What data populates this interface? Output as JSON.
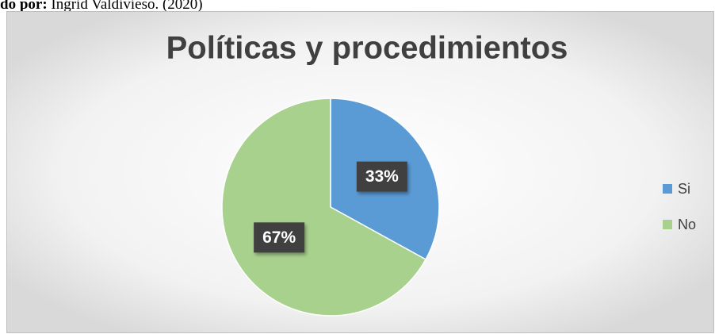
{
  "caption": {
    "label": "do por:",
    "text": "Ingrid Valdivieso. (2020)"
  },
  "chart_data": {
    "type": "pie",
    "title": "Políticas y procedimientos",
    "categories": [
      "Si",
      "No"
    ],
    "values": [
      33,
      67
    ],
    "value_labels": [
      "33%",
      "67%"
    ],
    "colors": [
      "#5b9bd5",
      "#a9d18e"
    ],
    "legend": "right"
  }
}
